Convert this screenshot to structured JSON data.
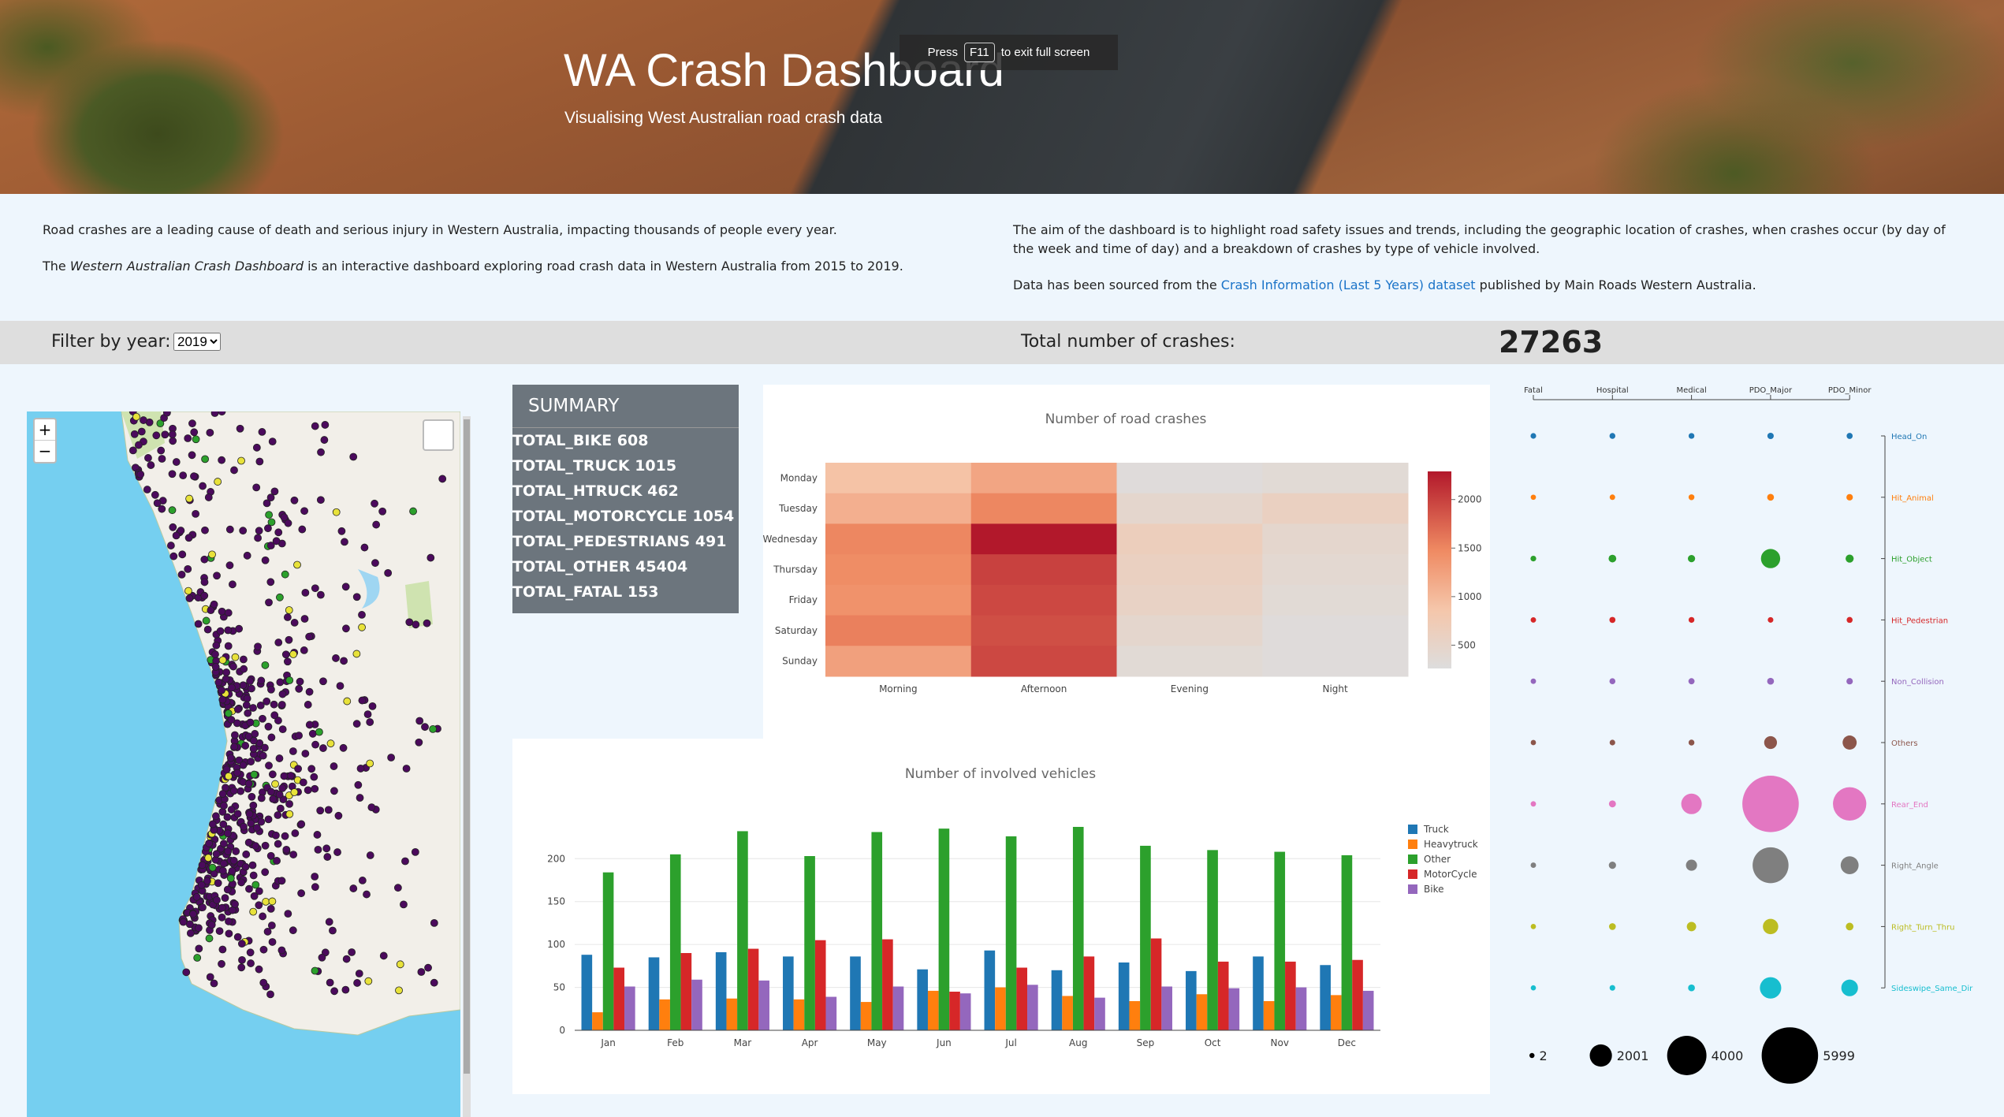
{
  "fullscreen_notice": {
    "before": "Press",
    "key": "F11",
    "after": "to exit full screen"
  },
  "header": {
    "title": "WA Crash Dashboard",
    "subtitle": "Visualising West Australian road crash data"
  },
  "intro": {
    "p1": "Road crashes are a leading cause of death and serious injury in Western Australia, impacting thousands of people every year.",
    "p2_start": "The",
    "p2_italic": "Western Australian Crash Dashboard",
    "p2_end": "is an interactive dashboard exploring road crash data in Western Australia from 2015 to 2019.",
    "p3": "The aim of the dashboard is to highlight road safety issues and trends, including the geographic location of crashes, when crashes occur (by day of the week and time of day) and a breakdown of crashes by type of vehicle involved.",
    "p4_start": "Data has been sourced from the",
    "p4_link": "Crash Information (Last 5 Years) dataset",
    "p4_end": "published by Main Roads Western Australia."
  },
  "filter": {
    "label": "Filter by year:",
    "selected": "2019"
  },
  "total": {
    "label": "Total number of crashes:",
    "value": 27263
  },
  "map": {
    "zoom_in": "+",
    "zoom_out": "−"
  },
  "summary": {
    "title": "SUMMARY",
    "items": [
      "TOTAL_BIKE 608",
      "TOTAL_TRUCK 1015",
      "TOTAL_HTRUCK 462",
      "TOTAL_MOTORCYCLE 1054",
      "TOTAL_PEDESTRIANS 491",
      "TOTAL_OTHER 45404",
      "TOTAL_FATAL 153"
    ]
  },
  "chart_data": [
    {
      "type": "heatmap",
      "title": "Number of road crashes",
      "categories": [
        "Morning",
        "Afternoon",
        "Evening",
        "Night"
      ],
      "y_categories": [
        "Monday",
        "Tuesday",
        "Wednesday",
        "Thursday",
        "Friday",
        "Saturday",
        "Sunday"
      ],
      "z": [
        [
          900,
          1200,
          300,
          350
        ],
        [
          1100,
          1500,
          450,
          600
        ],
        [
          1500,
          2290,
          650,
          450
        ],
        [
          1450,
          2000,
          600,
          400
        ],
        [
          1400,
          1950,
          550,
          350
        ],
        [
          1550,
          1900,
          450,
          300
        ],
        [
          1250,
          1950,
          350,
          300
        ]
      ],
      "zlim": [
        260,
        2290
      ],
      "zticks": [
        500,
        1000,
        1500,
        2000
      ],
      "colorscale": [
        [
          0,
          "#dddddd"
        ],
        [
          0.3,
          "#f5c6aa"
        ],
        [
          0.6,
          "#ef8a62"
        ],
        [
          1,
          "#b2182b"
        ]
      ]
    },
    {
      "type": "bar",
      "title": "Number of involved vehicles",
      "categories": [
        "Jan",
        "Feb",
        "Mar",
        "Apr",
        "May",
        "Jun",
        "Jul",
        "Aug",
        "Sep",
        "Oct",
        "Nov",
        "Dec"
      ],
      "series": [
        {
          "name": "Truck",
          "color": "#1f77b4",
          "values": [
            88,
            85,
            91,
            86,
            86,
            71,
            93,
            70,
            79,
            69,
            86,
            76
          ]
        },
        {
          "name": "Heavytruck",
          "color": "#ff7f0e",
          "values": [
            21,
            36,
            37,
            36,
            33,
            46,
            50,
            40,
            34,
            42,
            34,
            41
          ]
        },
        {
          "name": "Other",
          "color": "#2ca02c",
          "values": [
            184,
            205,
            232,
            203,
            231,
            235,
            226,
            237,
            215,
            210,
            208,
            204
          ]
        },
        {
          "name": "MotorCycle",
          "color": "#d62728",
          "values": [
            73,
            90,
            95,
            105,
            106,
            45,
            73,
            86,
            107,
            80,
            80,
            82
          ]
        },
        {
          "name": "Bike",
          "color": "#9467bd",
          "values": [
            51,
            59,
            58,
            39,
            51,
            43,
            53,
            38,
            51,
            49,
            50,
            46
          ]
        }
      ],
      "ylim": [
        0,
        248
      ],
      "yticks": [
        0,
        50,
        100,
        150,
        200
      ],
      "grid": true,
      "legend": "right"
    },
    {
      "type": "bubble",
      "categories": [
        "Fatal",
        "Hospital",
        "Medical",
        "PDO_Major",
        "PDO_Minor"
      ],
      "series": [
        {
          "name": "Head_On",
          "color": "#1f77b4",
          "values": [
            60,
            90,
            80,
            150,
            110
          ]
        },
        {
          "name": "Hit_Animal",
          "color": "#ff7f0e",
          "values": [
            20,
            50,
            90,
            200,
            160
          ]
        },
        {
          "name": "Hit_Object",
          "color": "#2ca02c",
          "values": [
            70,
            300,
            250,
            1650,
            350
          ]
        },
        {
          "name": "Hit_Pedestrian",
          "color": "#d62728",
          "values": [
            40,
            110,
            80,
            60,
            100
          ]
        },
        {
          "name": "Non_Collision",
          "color": "#9467bd",
          "values": [
            30,
            100,
            120,
            200,
            150
          ]
        },
        {
          "name": "Others",
          "color": "#8c564b",
          "values": [
            20,
            60,
            90,
            900,
            1050
          ]
        },
        {
          "name": "Rear_End",
          "color": "#e377c2",
          "values": [
            30,
            220,
            1800,
            5999,
            3300
          ]
        },
        {
          "name": "Right_Angle",
          "color": "#7f7f7f",
          "values": [
            40,
            250,
            700,
            3600,
            1500
          ]
        },
        {
          "name": "Right_Turn_Thru",
          "color": "#bcbd22",
          "values": [
            20,
            200,
            500,
            1200,
            300
          ]
        },
        {
          "name": "Sideswipe_Same_Dir",
          "color": "#17becf",
          "values": [
            10,
            60,
            200,
            1900,
            1350
          ]
        }
      ],
      "size_legend": [
        2,
        2001,
        4000,
        5999
      ]
    }
  ]
}
